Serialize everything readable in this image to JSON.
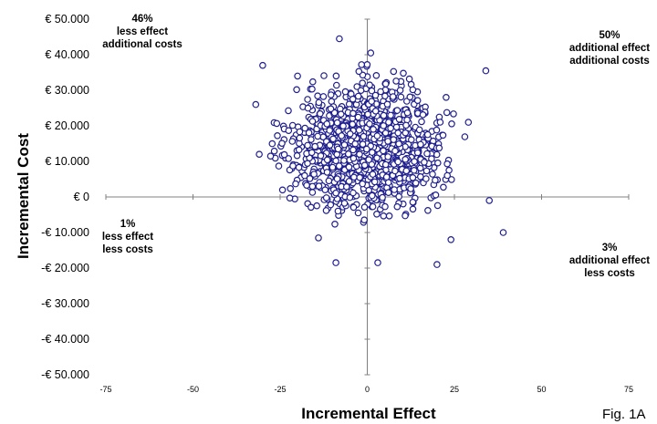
{
  "chart_data": {
    "type": "scatter",
    "xlabel": "Incremental Effect",
    "ylabel": "Incremental Cost",
    "xlim": [
      -75,
      75
    ],
    "ylim": [
      -50000,
      50000
    ],
    "x_ticks": [
      "-75",
      "-50",
      "-25",
      "0",
      "25",
      "50",
      "75"
    ],
    "y_ticks": [
      "€ 50.000",
      "€ 40.000",
      "€ 30.000",
      "€ 20.000",
      "€ 10.000",
      "€ 0",
      "-€ 10.000",
      "-€ 20.000",
      "-€ 30.000",
      "-€ 40.000",
      "-€ 50.000"
    ],
    "marker_color": "#1f1f8f",
    "cloud": {
      "approximate_points": 1200,
      "x_mean": 0,
      "x_sd": 11,
      "y_mean": 14000,
      "y_sd": 9000,
      "x_range": [
        -32,
        38
      ],
      "y_range": [
        -19000,
        45000
      ]
    },
    "outliers": [
      {
        "x": -8,
        "y": 44500
      },
      {
        "x": 1,
        "y": 40500
      },
      {
        "x": -30,
        "y": 37000
      },
      {
        "x": 34,
        "y": 35500
      },
      {
        "x": -20,
        "y": 34000
      },
      {
        "x": 35,
        "y": -1000
      },
      {
        "x": 39,
        "y": -10000
      },
      {
        "x": 20,
        "y": -19000
      },
      {
        "x": -9,
        "y": -18500
      },
      {
        "x": 3,
        "y": -18500
      },
      {
        "x": -14,
        "y": -11500
      },
      {
        "x": -32,
        "y": 26000
      },
      {
        "x": -31,
        "y": 12000
      },
      {
        "x": 29,
        "y": 21000
      },
      {
        "x": 24,
        "y": -12000
      }
    ],
    "quadrants": {
      "top_left": {
        "percent": "46%",
        "line1": "less effect",
        "line2": "additional costs"
      },
      "top_right": {
        "percent": "50%",
        "line1": "additional effect",
        "line2": "additional costs"
      },
      "bottom_left": {
        "percent": "1%",
        "line1": "less effect",
        "line2": "less costs"
      },
      "bottom_right": {
        "percent": "3%",
        "line1": "additional effect",
        "line2": "less costs"
      }
    }
  },
  "figure_label": "Fig. 1A"
}
